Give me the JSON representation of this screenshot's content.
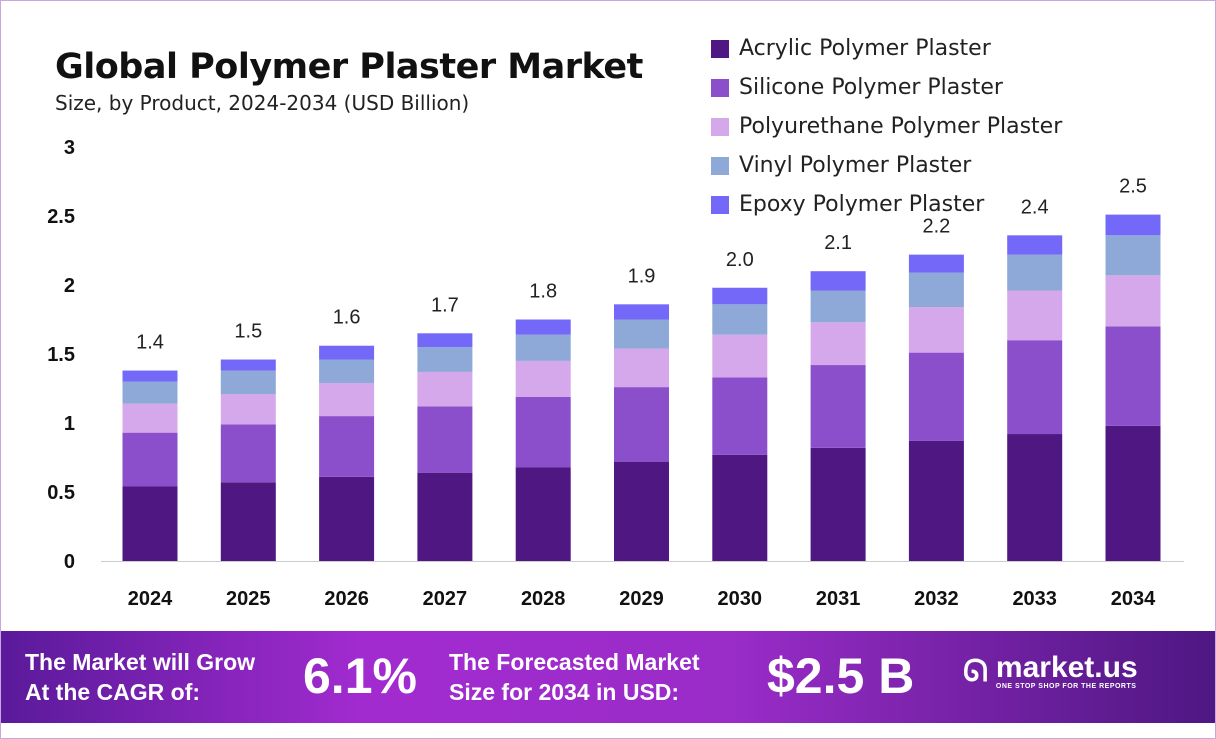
{
  "chart_data": {
    "type": "bar",
    "stacked": true,
    "title": "Global Polymer Plaster Market",
    "subtitle": "Size, by Product, 2024-2034 (USD Billion)",
    "categories": [
      "2024",
      "2025",
      "2026",
      "2027",
      "2028",
      "2029",
      "2030",
      "2031",
      "2032",
      "2033",
      "2034"
    ],
    "totals": [
      "1.4",
      "1.5",
      "1.6",
      "1.7",
      "1.8",
      "1.9",
      "2.0",
      "2.1",
      "2.2",
      "2.4",
      "2.5"
    ],
    "series": [
      {
        "name": "Acrylic Polymer Plaster",
        "color": "#4e1782",
        "values": [
          0.54,
          0.57,
          0.61,
          0.64,
          0.68,
          0.72,
          0.77,
          0.82,
          0.87,
          0.92,
          0.98
        ]
      },
      {
        "name": "Silicone Polymer Plaster",
        "color": "#8b4fcc",
        "values": [
          0.39,
          0.42,
          0.44,
          0.48,
          0.51,
          0.54,
          0.56,
          0.6,
          0.64,
          0.68,
          0.72
        ]
      },
      {
        "name": "Polyurethane Polymer Plaster",
        "color": "#d4a8ea",
        "values": [
          0.21,
          0.22,
          0.24,
          0.25,
          0.26,
          0.28,
          0.31,
          0.31,
          0.33,
          0.36,
          0.37
        ]
      },
      {
        "name": "Vinyl Polymer Plaster",
        "color": "#8ea8d8",
        "values": [
          0.16,
          0.17,
          0.17,
          0.18,
          0.19,
          0.21,
          0.22,
          0.23,
          0.25,
          0.26,
          0.29
        ]
      },
      {
        "name": "Epoxy Polymer Plaster",
        "color": "#7468f8",
        "values": [
          0.08,
          0.08,
          0.1,
          0.1,
          0.11,
          0.11,
          0.12,
          0.14,
          0.13,
          0.14,
          0.15
        ]
      }
    ],
    "yticks": [
      "0",
      "0.5",
      "1",
      "1.5",
      "2",
      "2.5",
      "3"
    ],
    "ylim": [
      0,
      3
    ],
    "grid": false,
    "legend": "top-right"
  },
  "footer": {
    "cagr_label_1": "The Market will Grow",
    "cagr_label_2": "At the CAGR of:",
    "cagr_value": "6.1%",
    "forecast_label_1": "The Forecasted Market",
    "forecast_label_2": "Size for 2034 in USD:",
    "forecast_value": "$2.5 B",
    "logo_name": "market.us",
    "logo_tagline": "ONE STOP SHOP FOR THE REPORTS"
  }
}
